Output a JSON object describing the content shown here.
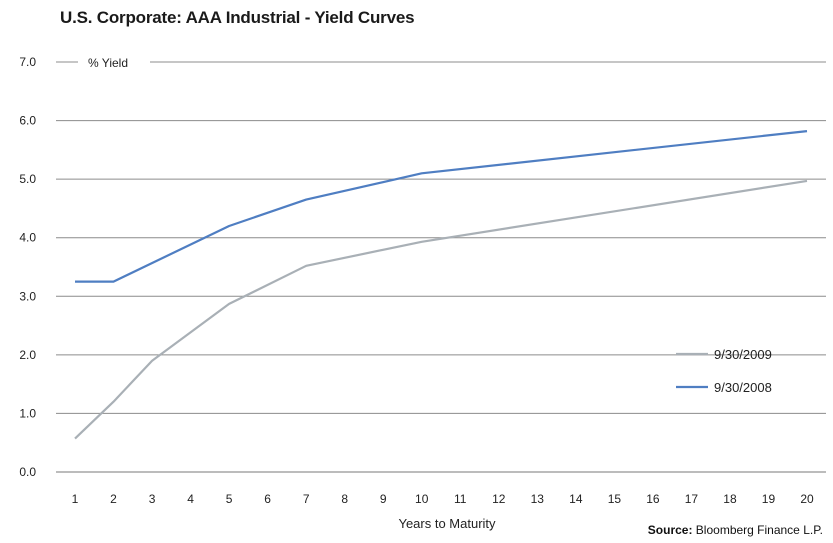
{
  "chart_data": {
    "type": "line",
    "title": "U.S. Corporate: AAA Industrial - Yield Curves",
    "ylabel": "% Yield",
    "xlabel": "Years to Maturity",
    "ylim": [
      0,
      7
    ],
    "yticks": [
      "0.0",
      "1.0",
      "2.0",
      "3.0",
      "4.0",
      "5.0",
      "6.0",
      "7.0"
    ],
    "x": [
      1,
      2,
      3,
      4,
      5,
      6,
      7,
      8,
      9,
      10,
      11,
      12,
      13,
      14,
      15,
      16,
      17,
      18,
      19,
      20
    ],
    "xticks": [
      "1",
      "2",
      "3",
      "4",
      "5",
      "6",
      "7",
      "8",
      "9",
      "10",
      "11",
      "12",
      "13",
      "14",
      "15",
      "16",
      "17",
      "18",
      "19",
      "20"
    ],
    "series": [
      {
        "name": "9/30/2009",
        "color": "#a9b0b6",
        "points": [
          [
            1,
            0.57
          ],
          [
            2,
            1.2
          ],
          [
            3,
            1.9
          ],
          [
            5,
            2.87
          ],
          [
            7,
            3.52
          ],
          [
            10,
            3.93
          ],
          [
            20,
            4.97
          ]
        ]
      },
      {
        "name": "9/30/2008",
        "color": "#4f7ec2",
        "points": [
          [
            1,
            3.25
          ],
          [
            2,
            3.25
          ],
          [
            5,
            4.2
          ],
          [
            7,
            4.65
          ],
          [
            10,
            5.1
          ],
          [
            20,
            5.82
          ]
        ]
      }
    ],
    "legend": "bottom-right",
    "grid": true
  },
  "source": {
    "label": "Source:",
    "text": " Bloomberg Finance L.P."
  }
}
